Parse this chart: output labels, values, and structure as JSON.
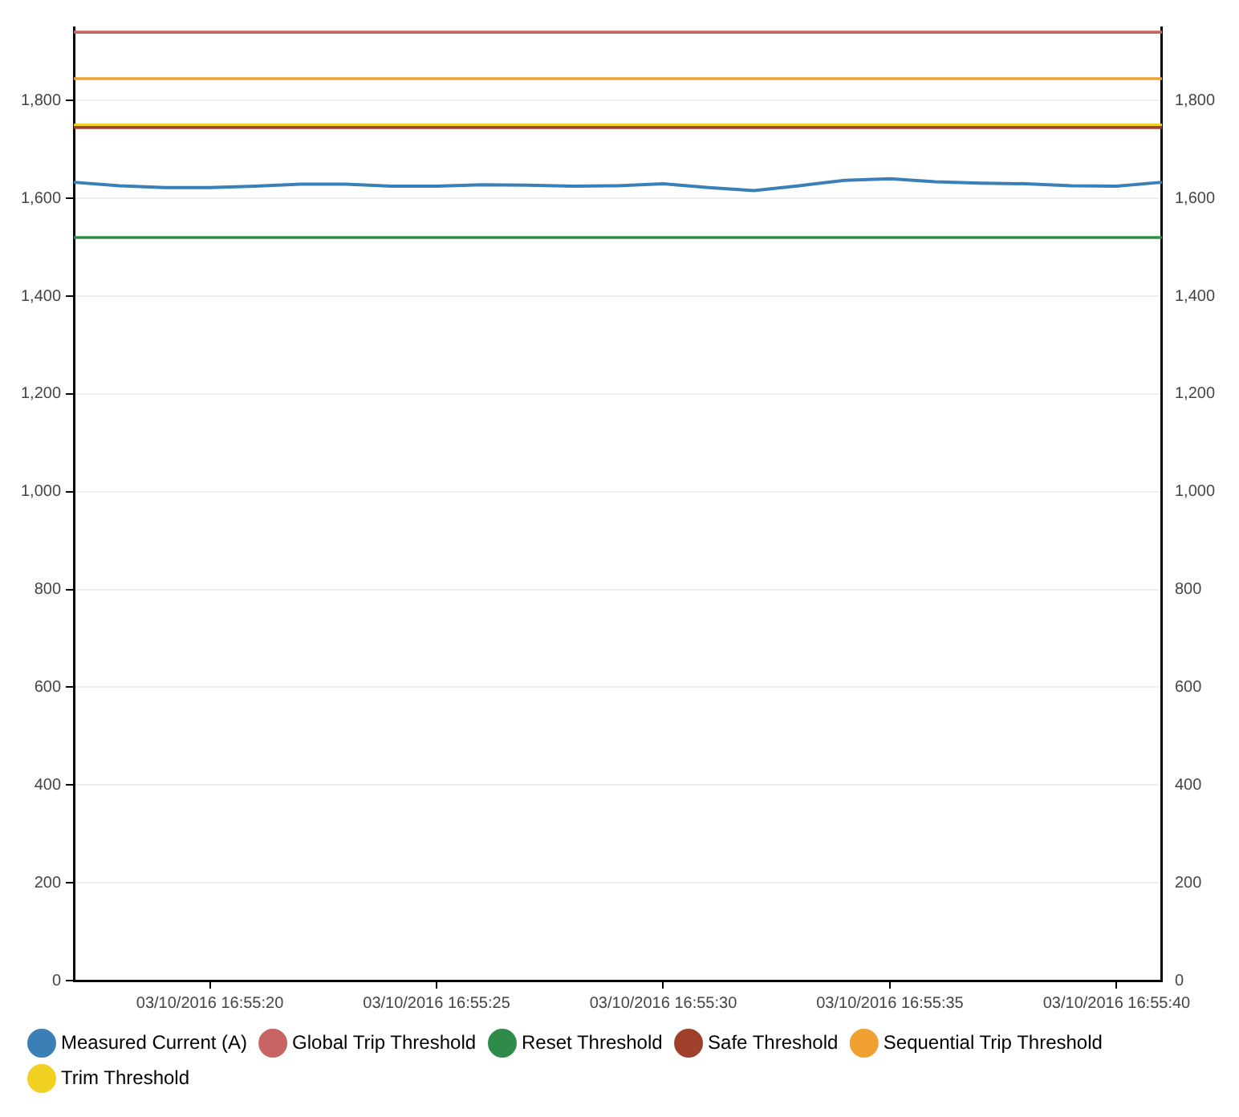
{
  "chart_data": {
    "type": "line",
    "marker": "none",
    "line_style": "solid",
    "grid": "y",
    "legend": "bottom",
    "categories": [
      null,
      null,
      null,
      "03/10/2016 16:55:20",
      null,
      null,
      null,
      null,
      "03/10/2016 16:55:25",
      null,
      null,
      null,
      null,
      "03/10/2016 16:55:30",
      null,
      null,
      null,
      null,
      "03/10/2016 16:55:35",
      null,
      null,
      null,
      null,
      "03/10/2016 16:55:40",
      null
    ],
    "ylim": [
      0,
      1950
    ],
    "yticks": [
      0,
      200,
      400,
      600,
      800,
      {
        "value": 1000,
        "label": "1,000"
      },
      {
        "value": 1200,
        "label": "1,200"
      },
      {
        "value": 1400,
        "label": "1,400"
      },
      {
        "value": 1600,
        "label": "1,600"
      },
      {
        "value": 1800,
        "label": "1,800"
      }
    ],
    "y2lim": [
      0,
      1950
    ],
    "y2ticks": [
      0,
      200,
      400,
      600,
      800,
      {
        "value": 1000,
        "label": "1,000"
      },
      {
        "value": 1200,
        "label": "1,200"
      },
      {
        "value": 1400,
        "label": "1,400"
      },
      {
        "value": 1600,
        "label": "1,600"
      },
      {
        "value": 1800,
        "label": "1,800"
      }
    ],
    "series": [
      {
        "name": "Measured Current (A)",
        "color": "#3a7fb5",
        "values": [
          1633,
          1626,
          1622,
          1622,
          1625,
          1629,
          1629,
          1625,
          1625,
          1628,
          1627,
          1625,
          1626,
          1630,
          1622,
          1616,
          1626,
          1637,
          1640,
          1634,
          1631,
          1630,
          1626,
          1625,
          1633
        ]
      },
      {
        "name": "Global Trip Threshold",
        "color": "#c86464",
        "values": [
          1940,
          1940,
          1940,
          1940,
          1940,
          1940,
          1940,
          1940,
          1940,
          1940,
          1940,
          1940,
          1940,
          1940,
          1940,
          1940,
          1940,
          1940,
          1940,
          1940,
          1940,
          1940,
          1940,
          1940,
          1940
        ]
      },
      {
        "name": "Reset Threshold",
        "color": "#2e8b4a",
        "values": [
          1520,
          1520,
          1520,
          1520,
          1520,
          1520,
          1520,
          1520,
          1520,
          1520,
          1520,
          1520,
          1520,
          1520,
          1520,
          1520,
          1520,
          1520,
          1520,
          1520,
          1520,
          1520,
          1520,
          1520,
          1520
        ]
      },
      {
        "name": "Safe Threshold",
        "color": "#a0402a",
        "values": [
          1745,
          1745,
          1745,
          1745,
          1745,
          1745,
          1745,
          1745,
          1745,
          1745,
          1745,
          1745,
          1745,
          1745,
          1745,
          1745,
          1745,
          1745,
          1745,
          1745,
          1745,
          1745,
          1745,
          1745,
          1745
        ]
      },
      {
        "name": "Sequential Trip Threshold",
        "color": "#f0a030",
        "values": [
          1845,
          1845,
          1845,
          1845,
          1845,
          1845,
          1845,
          1845,
          1845,
          1845,
          1845,
          1845,
          1845,
          1845,
          1845,
          1845,
          1845,
          1845,
          1845,
          1845,
          1845,
          1845,
          1845,
          1845,
          1845
        ]
      },
      {
        "name": "Trim Threshold",
        "color": "#f0d020",
        "values": [
          1750,
          1750,
          1750,
          1750,
          1750,
          1750,
          1750,
          1750,
          1750,
          1750,
          1750,
          1750,
          1750,
          1750,
          1750,
          1750,
          1750,
          1750,
          1750,
          1750,
          1750,
          1750,
          1750,
          1750,
          1750
        ]
      }
    ]
  }
}
